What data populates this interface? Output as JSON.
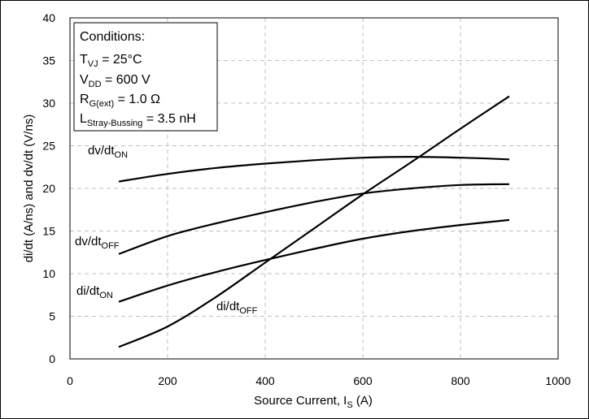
{
  "chart_data": {
    "type": "line",
    "xlabel_main": "Source Current, I",
    "xlabel_sub": "S",
    "xlabel_tail": " (A)",
    "ylabel": "di/dt (A/ns) and dv/dt (V/ns)",
    "xlim": [
      0,
      1000
    ],
    "ylim": [
      0,
      40
    ],
    "xticks": [
      0,
      200,
      400,
      600,
      800,
      1000
    ],
    "yticks": [
      0,
      5,
      10,
      15,
      20,
      25,
      30,
      35,
      40
    ],
    "grid": true,
    "series": [
      {
        "name": "dv/dt",
        "name_sub": "ON",
        "x": [
          100,
          200,
          300,
          400,
          500,
          600,
          700,
          800,
          900
        ],
        "y": [
          20.8,
          21.7,
          22.4,
          22.9,
          23.3,
          23.6,
          23.7,
          23.6,
          23.4
        ]
      },
      {
        "name": "dv/dt",
        "name_sub": "OFF",
        "x": [
          100,
          200,
          300,
          400,
          500,
          600,
          700,
          800,
          900
        ],
        "y": [
          12.3,
          14.4,
          15.9,
          17.2,
          18.4,
          19.4,
          20.0,
          20.4,
          20.5
        ]
      },
      {
        "name": "di/dt",
        "name_sub": "ON",
        "x": [
          100,
          200,
          300,
          400,
          500,
          600,
          700,
          800,
          900
        ],
        "y": [
          6.7,
          8.6,
          10.2,
          11.6,
          12.9,
          14.1,
          15.0,
          15.7,
          16.3
        ]
      },
      {
        "name": "di/dt",
        "name_sub": "OFF",
        "x": [
          100,
          200,
          300,
          400,
          500,
          600,
          700,
          800,
          900
        ],
        "y": [
          1.4,
          3.8,
          7.3,
          11.3,
          15.3,
          19.3,
          23.1,
          27.0,
          30.8
        ]
      }
    ],
    "conditions": {
      "title": "Conditions:",
      "lines": [
        {
          "main": "T",
          "sub": "VJ",
          "rest": " = 25°C"
        },
        {
          "main": "V",
          "sub": "DD",
          "rest": " = 600 V"
        },
        {
          "main": "R",
          "sub": "G(ext)",
          "rest": " = 1.0 Ω"
        },
        {
          "main": "L",
          "sub": "Stray-Bussing",
          "rest": " = 3.5 nH"
        }
      ]
    }
  }
}
